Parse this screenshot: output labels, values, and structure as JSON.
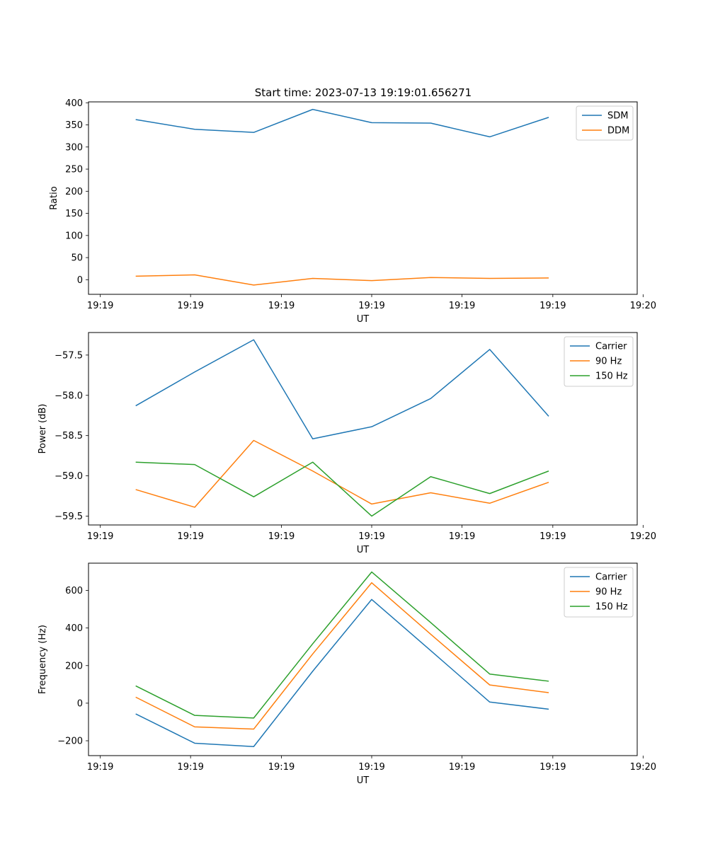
{
  "figure_title": "Start time: 2023-07-13 19:19:01.656271",
  "chart_data": [
    {
      "type": "line",
      "title": "Start time: 2023-07-13 19:19:01.656271",
      "xlabel": "UT",
      "ylabel": "Ratio",
      "x": [
        1,
        2,
        3,
        4,
        5,
        6,
        7,
        8
      ],
      "xlim": [
        0.2,
        9.5
      ],
      "xticks": [
        0.4,
        1.93,
        3.47,
        5.0,
        6.53,
        8.07,
        9.6
      ],
      "xtick_labels": [
        "19:19",
        "19:19",
        "19:19",
        "19:19",
        "19:19",
        "19:19",
        "19:20"
      ],
      "ylim": [
        -33,
        402
      ],
      "yticks": [
        0,
        50,
        100,
        150,
        200,
        250,
        300,
        350,
        400
      ],
      "ytick_labels": [
        "0",
        "50",
        "100",
        "150",
        "200",
        "250",
        "300",
        "350",
        "400"
      ],
      "legend_position": "top-right",
      "series": [
        {
          "name": "SDM",
          "color": "#1f77b4",
          "values": [
            362,
            340,
            333,
            385,
            355,
            354,
            323,
            367
          ]
        },
        {
          "name": "DDM",
          "color": "#ff7f0e",
          "values": [
            8,
            11,
            -12,
            3,
            -2,
            5,
            3,
            4
          ]
        }
      ]
    },
    {
      "type": "line",
      "title": "",
      "xlabel": "UT",
      "ylabel": "Power (dB)",
      "x": [
        1,
        2,
        3,
        4,
        5,
        6,
        7,
        8
      ],
      "xlim": [
        0.2,
        9.5
      ],
      "xticks": [
        0.4,
        1.93,
        3.47,
        5.0,
        6.53,
        8.07,
        9.6
      ],
      "xtick_labels": [
        "19:19",
        "19:19",
        "19:19",
        "19:19",
        "19:19",
        "19:19",
        "19:20"
      ],
      "ylim": [
        -59.61,
        -57.22
      ],
      "yticks": [
        -59.5,
        -59.0,
        -58.5,
        -58.0,
        -57.5
      ],
      "ytick_labels": [
        "−59.5",
        "−59.0",
        "−58.5",
        "−58.0",
        "−57.5"
      ],
      "legend_position": "top-right",
      "series": [
        {
          "name": "Carrier",
          "color": "#1f77b4",
          "values": [
            -58.13,
            -57.71,
            -57.31,
            -58.54,
            -58.39,
            -58.04,
            -57.43,
            -58.26
          ]
        },
        {
          "name": "90 Hz",
          "color": "#ff7f0e",
          "values": [
            -59.17,
            -59.39,
            -58.56,
            -58.94,
            -59.35,
            -59.21,
            -59.34,
            -59.08
          ]
        },
        {
          "name": "150 Hz",
          "color": "#2ca02c",
          "values": [
            -58.83,
            -58.86,
            -59.26,
            -58.83,
            -59.5,
            -59.01,
            -59.22,
            -58.94
          ]
        }
      ]
    },
    {
      "type": "line",
      "title": "",
      "xlabel": "UT",
      "ylabel": "Frequency (Hz)",
      "x": [
        1,
        2,
        3,
        4,
        5,
        6,
        7,
        8
      ],
      "xlim": [
        0.2,
        9.5
      ],
      "xticks": [
        0.4,
        1.93,
        3.47,
        5.0,
        6.53,
        8.07,
        9.6
      ],
      "xtick_labels": [
        "19:19",
        "19:19",
        "19:19",
        "19:19",
        "19:19",
        "19:19",
        "19:20"
      ],
      "ylim": [
        -279,
        745
      ],
      "yticks": [
        -200,
        0,
        200,
        400,
        600
      ],
      "ytick_labels": [
        "−200",
        "0",
        "200",
        "400",
        "600"
      ],
      "legend_position": "top-right",
      "series": [
        {
          "name": "Carrier",
          "color": "#1f77b4",
          "values": [
            -57,
            -213,
            -231,
            170,
            552,
            280,
            6,
            -32
          ]
        },
        {
          "name": "90 Hz",
          "color": "#ff7f0e",
          "values": [
            32,
            -126,
            -138,
            262,
            641,
            367,
            97,
            56
          ]
        },
        {
          "name": "150 Hz",
          "color": "#2ca02c",
          "values": [
            92,
            -65,
            -79,
            316,
            698,
            429,
            155,
            117
          ]
        }
      ]
    }
  ]
}
